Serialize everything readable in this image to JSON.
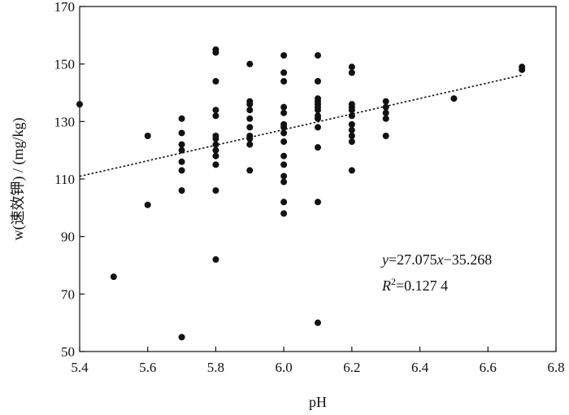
{
  "chart_data": {
    "type": "scatter",
    "xlabel": "pH",
    "ylabel": "w(速效钾) / (mg/kg)",
    "xlim": [
      5.4,
      6.8
    ],
    "ylim": [
      50,
      170
    ],
    "xticks": [
      "5.4",
      "5.6",
      "5.8",
      "6.0",
      "6.2",
      "6.4",
      "6.6",
      "6.8"
    ],
    "yticks": [
      "50",
      "70",
      "90",
      "110",
      "130",
      "150",
      "170"
    ],
    "grid": false,
    "series": [
      {
        "points": [
          [
            5.4,
            136
          ],
          [
            5.5,
            76
          ],
          [
            5.6,
            101
          ],
          [
            5.6,
            125
          ],
          [
            5.7,
            55
          ],
          [
            5.7,
            106
          ],
          [
            5.7,
            113
          ],
          [
            5.7,
            116
          ],
          [
            5.7,
            120
          ],
          [
            5.7,
            122
          ],
          [
            5.7,
            126
          ],
          [
            5.7,
            131
          ],
          [
            5.8,
            82
          ],
          [
            5.8,
            106
          ],
          [
            5.8,
            115
          ],
          [
            5.8,
            118
          ],
          [
            5.8,
            120
          ],
          [
            5.8,
            122
          ],
          [
            5.8,
            124
          ],
          [
            5.8,
            125
          ],
          [
            5.8,
            132
          ],
          [
            5.8,
            134
          ],
          [
            5.8,
            144
          ],
          [
            5.8,
            154
          ],
          [
            5.8,
            155
          ],
          [
            5.9,
            113
          ],
          [
            5.9,
            122
          ],
          [
            5.9,
            124
          ],
          [
            5.9,
            125
          ],
          [
            5.9,
            128
          ],
          [
            5.9,
            131
          ],
          [
            5.9,
            134
          ],
          [
            5.9,
            136
          ],
          [
            5.9,
            137
          ],
          [
            5.9,
            150
          ],
          [
            6.0,
            98
          ],
          [
            6.0,
            102
          ],
          [
            6.0,
            109
          ],
          [
            6.0,
            111
          ],
          [
            6.0,
            115
          ],
          [
            6.0,
            118
          ],
          [
            6.0,
            123
          ],
          [
            6.0,
            126
          ],
          [
            6.0,
            128
          ],
          [
            6.0,
            129
          ],
          [
            6.0,
            133
          ],
          [
            6.0,
            135
          ],
          [
            6.0,
            144
          ],
          [
            6.0,
            147
          ],
          [
            6.0,
            153
          ],
          [
            6.1,
            60
          ],
          [
            6.1,
            102
          ],
          [
            6.1,
            121
          ],
          [
            6.1,
            128
          ],
          [
            6.1,
            131
          ],
          [
            6.1,
            132
          ],
          [
            6.1,
            134
          ],
          [
            6.1,
            135
          ],
          [
            6.1,
            136
          ],
          [
            6.1,
            137
          ],
          [
            6.1,
            138
          ],
          [
            6.1,
            144
          ],
          [
            6.1,
            153
          ],
          [
            6.2,
            113
          ],
          [
            6.2,
            123
          ],
          [
            6.2,
            125
          ],
          [
            6.2,
            127
          ],
          [
            6.2,
            129
          ],
          [
            6.2,
            132
          ],
          [
            6.2,
            134
          ],
          [
            6.2,
            135
          ],
          [
            6.2,
            136
          ],
          [
            6.2,
            147
          ],
          [
            6.2,
            149
          ],
          [
            6.3,
            125
          ],
          [
            6.3,
            131
          ],
          [
            6.3,
            133
          ],
          [
            6.3,
            135
          ],
          [
            6.3,
            137
          ],
          [
            6.5,
            138
          ],
          [
            6.7,
            148
          ],
          [
            6.7,
            149
          ]
        ]
      }
    ],
    "trendline": {
      "style": "dotted",
      "slope": 27.075,
      "intercept": -35.268,
      "x_range": [
        5.4,
        6.7
      ]
    },
    "annotation": {
      "equation": {
        "y": "y",
        "eq": "=27.075",
        "x": "x",
        "rest": "−35.268"
      },
      "r2": {
        "r": "R",
        "sup": "2",
        "rest": "=0.127 4"
      }
    }
  }
}
